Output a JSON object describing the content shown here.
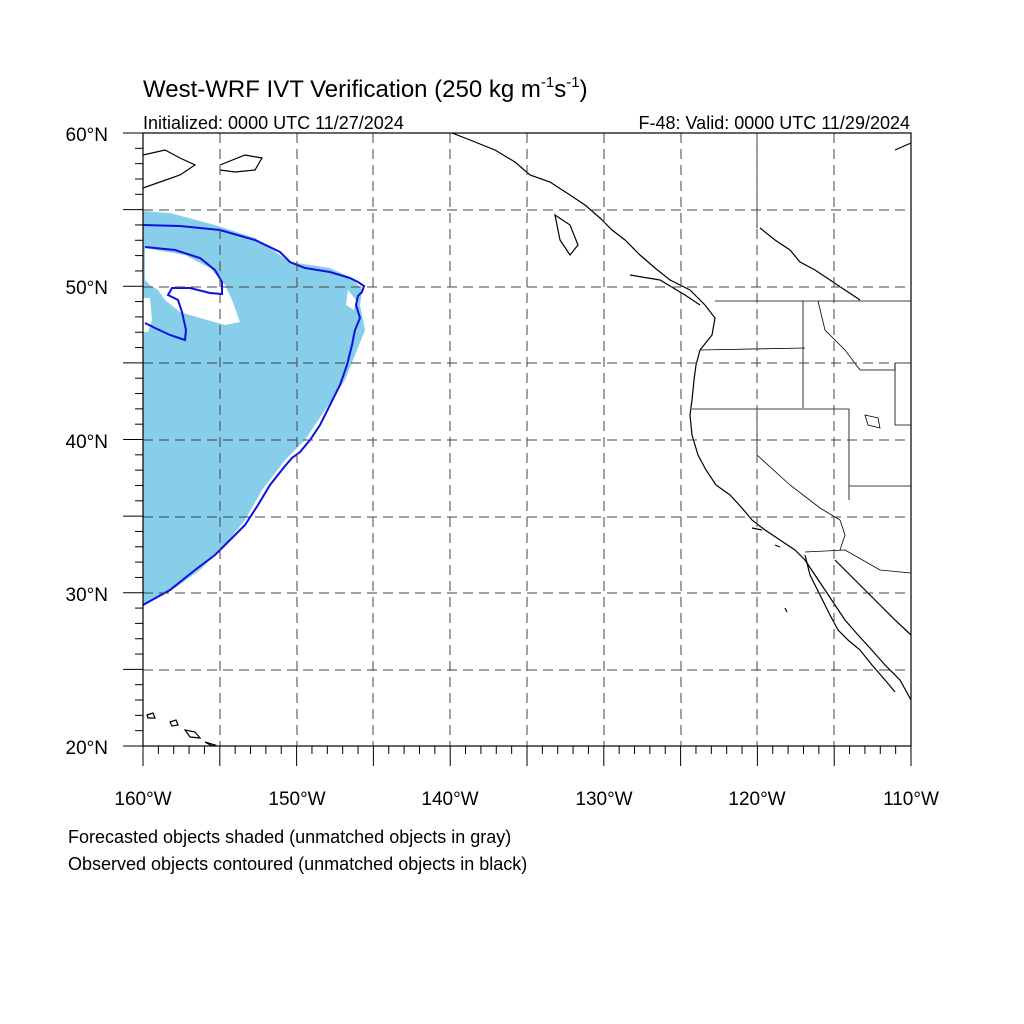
{
  "title": {
    "main": "West-WRF IVT Verification (250 kg m",
    "sup1": "-1",
    "mid": "s",
    "sup2": "-1",
    "end": ")"
  },
  "init_label": "Initialized: 0000 UTC 11/27/2024",
  "valid_label": "F-48: Valid: 0000 UTC 11/29/2024",
  "lat_labels": [
    "60°N",
    "50°N",
    "40°N",
    "30°N",
    "20°N"
  ],
  "lon_labels": [
    "160°W",
    "150°W",
    "140°W",
    "130°W",
    "120°W",
    "110°W"
  ],
  "notes": {
    "line1": "Forecasted objects shaded (unmatched objects in gray)",
    "line2": "Observed objects contoured (unmatched objects in black)"
  },
  "colors": {
    "forecast_fill": "#87ceeb",
    "observed_contour": "#1010e0",
    "coast": "#000000"
  },
  "map_extent": {
    "lon_min": -160,
    "lon_max": -110,
    "lat_min": 20,
    "lat_max": 60
  }
}
